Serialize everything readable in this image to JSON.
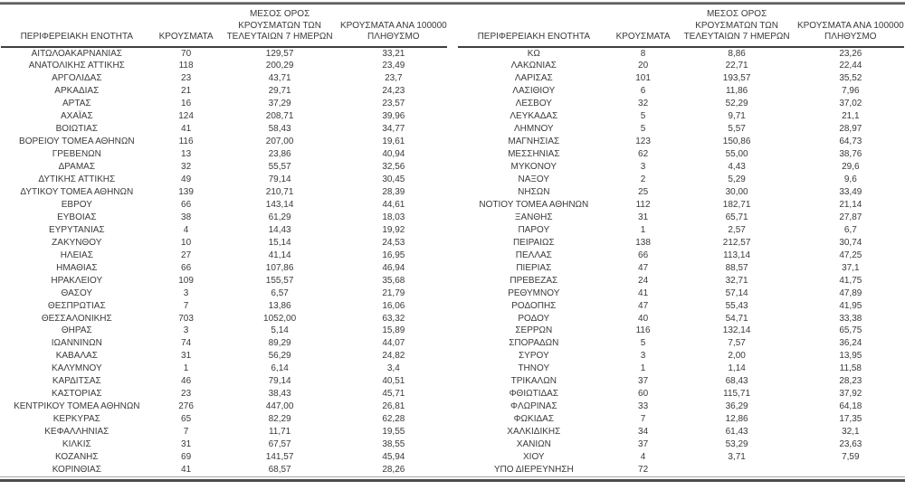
{
  "colors": {
    "background": "#ffffff",
    "text": "#3a3a3a",
    "header_underline": "#3f3f3f",
    "top_rule": "#4c4c4f",
    "bottom_rule_light": "#a6a6a6",
    "bottom_rule_dark": "#4c4c4f"
  },
  "headers": {
    "region": "ΠΕΡΙΦΕΡΕΙΑΚΗ ΕΝΟΤΗΤΑ",
    "cases": "ΚΡΟΥΣΜΑΤΑ",
    "avg7": "ΜΕΣΟΣ ΟΡΟΣ\nΚΡΟΥΣΜΑΤΩΝ ΤΩΝ\nΤΕΛΕΥΤΑΙΩΝ 7 ΗΜΕΡΩΝ",
    "per100k": "ΚΡΟΥΣΜΑΤΑ ΑΝΑ 100000\nΠΛΗΘΥΣΜΟ"
  },
  "left_rows": [
    [
      "ΑΙΤΩΛΟΑΚΑΡΝΑΝΙΑΣ",
      "70",
      "129,57",
      "33,21"
    ],
    [
      "ΑΝΑΤΟΛΙΚΗΣ ΑΤΤΙΚΗΣ",
      "118",
      "200,29",
      "23,49"
    ],
    [
      "ΑΡΓΟΛΙΔΑΣ",
      "23",
      "43,71",
      "23,7"
    ],
    [
      "ΑΡΚΑΔΙΑΣ",
      "21",
      "29,71",
      "24,23"
    ],
    [
      "ΑΡΤΑΣ",
      "16",
      "37,29",
      "23,57"
    ],
    [
      "ΑΧΑΪΑΣ",
      "124",
      "208,71",
      "39,96"
    ],
    [
      "ΒΟΙΩΤΙΑΣ",
      "41",
      "58,43",
      "34,77"
    ],
    [
      "ΒΟΡΕΙΟΥ ΤΟΜΕΑ ΑΘΗΝΩΝ",
      "116",
      "207,00",
      "19,61"
    ],
    [
      "ΓΡΕΒΕΝΩΝ",
      "13",
      "23,86",
      "40,94"
    ],
    [
      "ΔΡΑΜΑΣ",
      "32",
      "55,57",
      "32,56"
    ],
    [
      "ΔΥΤΙΚΗΣ ΑΤΤΙΚΗΣ",
      "49",
      "79,14",
      "30,45"
    ],
    [
      "ΔΥΤΙΚΟΥ ΤΟΜΕΑ ΑΘΗΝΩΝ",
      "139",
      "210,71",
      "28,39"
    ],
    [
      "ΕΒΡΟΥ",
      "66",
      "143,14",
      "44,61"
    ],
    [
      "ΕΥΒΟΙΑΣ",
      "38",
      "61,29",
      "18,03"
    ],
    [
      "ΕΥΡΥΤΑΝΙΑΣ",
      "4",
      "14,43",
      "19,92"
    ],
    [
      "ΖΑΚΥΝΘΟΥ",
      "10",
      "15,14",
      "24,53"
    ],
    [
      "ΗΛΕΙΑΣ",
      "27",
      "41,14",
      "16,95"
    ],
    [
      "ΗΜΑΘΙΑΣ",
      "66",
      "107,86",
      "46,94"
    ],
    [
      "ΗΡΑΚΛΕΙΟΥ",
      "109",
      "155,57",
      "35,68"
    ],
    [
      "ΘΑΣΟΥ",
      "3",
      "6,57",
      "21,79"
    ],
    [
      "ΘΕΣΠΡΩΤΙΑΣ",
      "7",
      "13,86",
      "16,06"
    ],
    [
      "ΘΕΣΣΑΛΟΝΙΚΗΣ",
      "703",
      "1052,00",
      "63,32"
    ],
    [
      "ΘΗΡΑΣ",
      "3",
      "5,14",
      "15,89"
    ],
    [
      "ΙΩΑΝΝΙΝΩΝ",
      "74",
      "89,29",
      "44,07"
    ],
    [
      "ΚΑΒΑΛΑΣ",
      "31",
      "56,29",
      "24,82"
    ],
    [
      "ΚΑΛΥΜΝΟΥ",
      "1",
      "6,14",
      "3,4"
    ],
    [
      "ΚΑΡΔΙΤΣΑΣ",
      "46",
      "79,14",
      "40,51"
    ],
    [
      "ΚΑΣΤΟΡΙΑΣ",
      "23",
      "38,43",
      "45,71"
    ],
    [
      "ΚΕΝΤΡΙΚΟΥ ΤΟΜΕΑ ΑΘΗΝΩΝ",
      "276",
      "447,00",
      "26,81"
    ],
    [
      "ΚΕΡΚΥΡΑΣ",
      "65",
      "82,29",
      "62,28"
    ],
    [
      "ΚΕΦΑΛΛΗΝΙΑΣ",
      "7",
      "11,71",
      "19,55"
    ],
    [
      "ΚΙΛΚΙΣ",
      "31",
      "67,57",
      "38,55"
    ],
    [
      "ΚΟΖΑΝΗΣ",
      "69",
      "141,57",
      "45,94"
    ],
    [
      "ΚΟΡΙΝΘΙΑΣ",
      "41",
      "68,57",
      "28,26"
    ]
  ],
  "right_rows": [
    [
      "ΚΩ",
      "8",
      "8,86",
      "23,26"
    ],
    [
      "ΛΑΚΩΝΙΑΣ",
      "20",
      "22,71",
      "22,44"
    ],
    [
      "ΛΑΡΙΣΑΣ",
      "101",
      "193,57",
      "35,52"
    ],
    [
      "ΛΑΣΙΘΙΟΥ",
      "6",
      "11,86",
      "7,96"
    ],
    [
      "ΛΕΣΒΟΥ",
      "32",
      "52,29",
      "37,02"
    ],
    [
      "ΛΕΥΚΑΔΑΣ",
      "5",
      "9,71",
      "21,1"
    ],
    [
      "ΛΗΜΝΟΥ",
      "5",
      "5,57",
      "28,97"
    ],
    [
      "ΜΑΓΝΗΣΙΑΣ",
      "123",
      "150,86",
      "64,73"
    ],
    [
      "ΜΕΣΣΗΝΙΑΣ",
      "62",
      "55,00",
      "38,76"
    ],
    [
      "ΜΥΚΟΝΟΥ",
      "3",
      "4,43",
      "29,6"
    ],
    [
      "ΝΑΞΟΥ",
      "2",
      "5,29",
      "9,6"
    ],
    [
      "ΝΗΣΩΝ",
      "25",
      "30,00",
      "33,49"
    ],
    [
      "ΝΟΤΙΟΥ ΤΟΜΕΑ ΑΘΗΝΩΝ",
      "112",
      "182,71",
      "21,14"
    ],
    [
      "ΞΑΝΘΗΣ",
      "31",
      "65,71",
      "27,87"
    ],
    [
      "ΠΑΡΟΥ",
      "1",
      "2,57",
      "6,7"
    ],
    [
      "ΠΕΙΡΑΙΩΣ",
      "138",
      "212,57",
      "30,74"
    ],
    [
      "ΠΕΛΛΑΣ",
      "66",
      "113,14",
      "47,25"
    ],
    [
      "ΠΙΕΡΙΑΣ",
      "47",
      "88,57",
      "37,1"
    ],
    [
      "ΠΡΕΒΕΖΑΣ",
      "24",
      "32,71",
      "41,75"
    ],
    [
      "ΡΕΘΥΜΝΟΥ",
      "41",
      "57,14",
      "47,89"
    ],
    [
      "ΡΟΔΟΠΗΣ",
      "47",
      "55,43",
      "41,95"
    ],
    [
      "ΡΟΔΟΥ",
      "40",
      "54,71",
      "33,38"
    ],
    [
      "ΣΕΡΡΩΝ",
      "116",
      "132,14",
      "65,75"
    ],
    [
      "ΣΠΟΡΑΔΩΝ",
      "5",
      "7,57",
      "36,24"
    ],
    [
      "ΣΥΡΟΥ",
      "3",
      "2,00",
      "13,95"
    ],
    [
      "ΤΗΝΟΥ",
      "1",
      "1,14",
      "11,58"
    ],
    [
      "ΤΡΙΚΑΛΩΝ",
      "37",
      "68,43",
      "28,23"
    ],
    [
      "ΦΘΙΩΤΙΔΑΣ",
      "60",
      "115,71",
      "37,92"
    ],
    [
      "ΦΛΩΡΙΝΑΣ",
      "33",
      "36,29",
      "64,18"
    ],
    [
      "ΦΩΚΙΔΑΣ",
      "7",
      "12,86",
      "17,35"
    ],
    [
      "ΧΑΛΚΙΔΙΚΗΣ",
      "34",
      "61,43",
      "32,1"
    ],
    [
      "ΧΑΝΙΩΝ",
      "37",
      "53,29",
      "23,63"
    ],
    [
      "ΧΙΟΥ",
      "4",
      "3,71",
      "7,59"
    ],
    [
      "ΥΠΟ ΔΙΕΡΕΥΝΗΣΗ",
      "72",
      "",
      ""
    ]
  ]
}
